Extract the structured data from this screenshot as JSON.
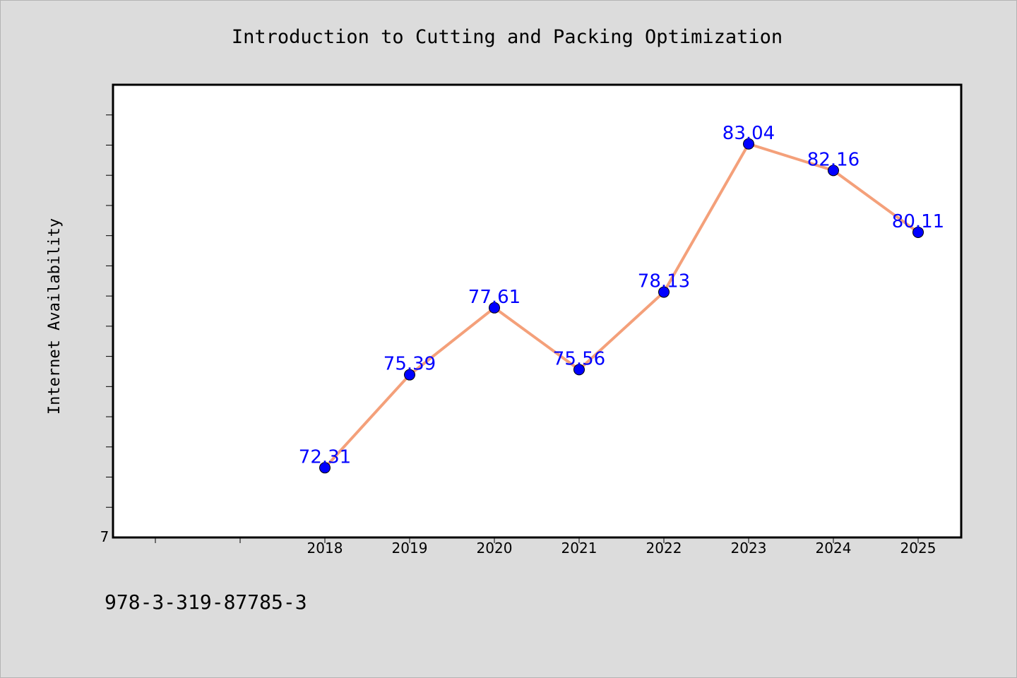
{
  "chart_data": {
    "type": "line",
    "title": "Introduction to Cutting and Packing Optimization",
    "xlabel": "",
    "ylabel": "Internet Availability",
    "x": [
      "2018",
      "2019",
      "2020",
      "2021",
      "2022",
      "2023",
      "2024",
      "2025"
    ],
    "series": [
      {
        "values": [
          72.31,
          75.39,
          77.61,
          75.56,
          78.13,
          83.04,
          82.16,
          80.11
        ],
        "labels": [
          "72.31",
          "75.39",
          "77.61",
          "75.56",
          "78.13",
          "83.04",
          "82.16",
          "80.11"
        ]
      }
    ],
    "y_tick_label": "7",
    "ylim": [
      70,
      85
    ],
    "grid": false,
    "line_color": "#f4a07a",
    "marker_color": "#0000ff",
    "label_color": "#0000ff"
  },
  "footer": {
    "isbn": "978-3-319-87785-3"
  }
}
